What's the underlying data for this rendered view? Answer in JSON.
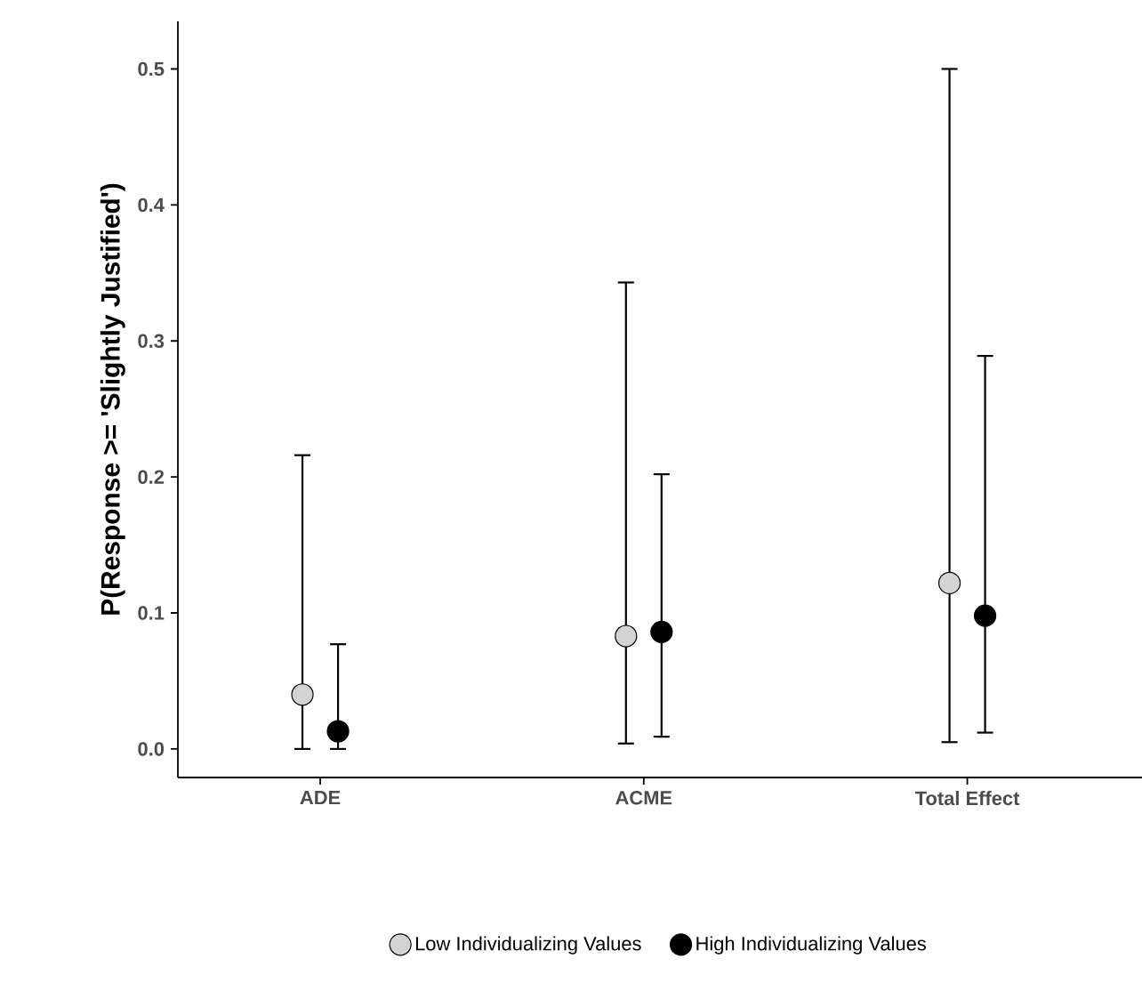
{
  "chart_data": {
    "type": "scatter",
    "ylabel": "P(Response >= 'Slightly Justified')",
    "categories": [
      "ADE",
      "ACME",
      "Total Effect"
    ],
    "ylim": [
      -0.021,
      0.535
    ],
    "yticks": [
      {
        "value": 0,
        "label": "0.0"
      },
      0.1,
      0.2,
      0.3,
      0.4,
      0.5
    ],
    "grid": false,
    "legend": "bottom",
    "marker": "circle",
    "series": [
      {
        "name": "Low Individualizing Values",
        "color": "#d3d3d3",
        "values": [
          0.04,
          0.083,
          0.122
        ],
        "errors": [
          [
            0.0,
            0.216
          ],
          [
            0.004,
            0.343
          ],
          [
            0.005,
            0.5
          ]
        ]
      },
      {
        "name": "High Individualizing Values",
        "color": "#000000",
        "values": [
          0.013,
          0.086,
          0.098
        ],
        "errors": [
          [
            0.0,
            0.077
          ],
          [
            0.009,
            0.202
          ],
          [
            0.012,
            0.289
          ]
        ]
      }
    ]
  }
}
